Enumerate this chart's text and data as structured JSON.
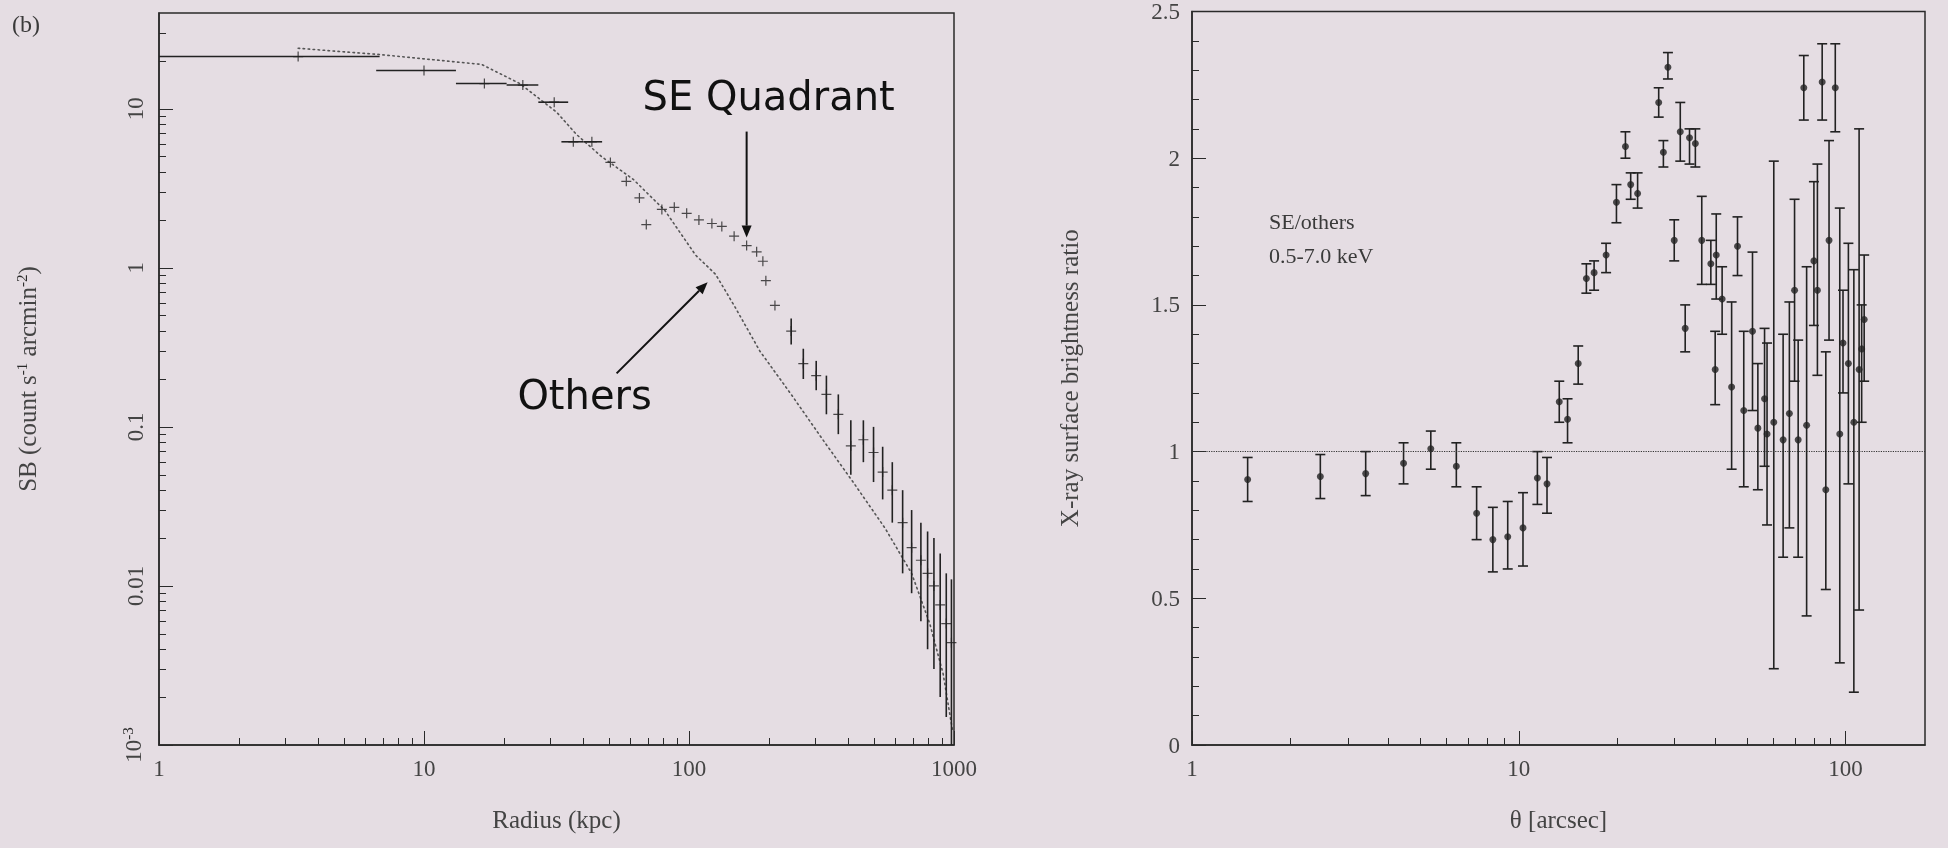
{
  "chart_data": [
    {
      "type": "scatter",
      "annotations": [
        "(b)"
      ],
      "xlabel": "Radius (kpc)",
      "ylabel": "SB (count s$^{-1}$ arcmin$^{-2}$)",
      "log": "xy",
      "xlim": [
        1,
        1000
      ],
      "xticks": [
        1,
        10,
        100,
        1000
      ],
      "ylim": [
        0.001,
        40
      ],
      "yticks": [
        {
          "value": 0.001,
          "label": "10$^{-3}$"
        },
        0.01,
        0.1,
        1,
        10
      ],
      "legend": false,
      "series": [
        {
          "name": "SE Quadrant",
          "type": "scatter",
          "color": "#222222",
          "marker": "cross",
          "x": [
            3.35,
            10,
            16.9,
            23.6,
            31,
            36.6,
            43,
            50.5,
            58,
            65,
            69,
            79,
            88,
            98,
            109,
            122,
            133,
            148,
            165,
            180,
            190,
            195,
            211,
            243,
            270,
            302,
            330,
            366,
            408,
            455,
            497,
            538,
            585,
            640,
            692,
            750,
            795,
            840,
            887,
            935,
            978
          ],
          "values": [
            21.3,
            17.4,
            14.4,
            14.1,
            11,
            6.2,
            6.2,
            4.6,
            3.5,
            2.75,
            1.87,
            2.33,
            2.4,
            2.2,
            2.0,
            1.9,
            1.82,
            1.58,
            1.38,
            1.26,
            1.1,
            0.83,
            0.58,
            0.4,
            0.25,
            0.21,
            0.16,
            0.12,
            0.076,
            0.083,
            0.069,
            0.052,
            0.04,
            0.025,
            0.0174,
            0.0145,
            0.012,
            0.01,
            0.0076,
            0.0058,
            0.0044
          ],
          "xerrors": [
            [
              1,
              6.8
            ],
            [
              6.6,
              13.2
            ],
            [
              13.2,
              20.5
            ],
            [
              20.5,
              27
            ],
            [
              27,
              35
            ],
            [
              33,
              40
            ],
            [
              40,
              47
            ],
            null,
            null,
            null,
            null,
            null,
            null,
            null,
            null,
            null,
            null,
            null,
            null,
            null,
            null,
            null,
            null,
            null,
            null,
            null,
            null,
            null,
            null,
            null,
            null,
            null,
            null,
            null,
            null,
            null,
            null,
            null,
            null,
            null,
            null
          ],
          "errors": [
            null,
            null,
            null,
            null,
            null,
            null,
            null,
            null,
            null,
            null,
            null,
            null,
            null,
            null,
            null,
            null,
            null,
            null,
            null,
            null,
            null,
            null,
            null,
            [
              0.33,
              0.48
            ],
            [
              0.2,
              0.31
            ],
            [
              0.17,
              0.26
            ],
            [
              0.12,
              0.21
            ],
            [
              0.09,
              0.16
            ],
            [
              0.05,
              0.11
            ],
            [
              0.06,
              0.11
            ],
            [
              0.045,
              0.1
            ],
            [
              0.035,
              0.075
            ],
            [
              0.025,
              0.06
            ],
            [
              0.012,
              0.04
            ],
            [
              0.009,
              0.03
            ],
            [
              0.006,
              0.025
            ],
            [
              0.004,
              0.022
            ],
            [
              0.003,
              0.02
            ],
            [
              0.002,
              0.016
            ],
            [
              0.0015,
              0.012
            ],
            [
              0.001,
              0.011
            ]
          ]
        },
        {
          "name": "Others",
          "type": "line",
          "color": "#555555",
          "line_style": "dotted",
          "marker": "none",
          "x": [
            3.35,
            6.85,
            16.5,
            23,
            31.7,
            37.6,
            46.8,
            61.6,
            81,
            106,
            126,
            148,
            185,
            243,
            320,
            420,
            550,
            692,
            810,
            910,
            990
          ],
          "values": [
            24,
            21.9,
            19,
            14.4,
            9.5,
            6.9,
            5.0,
            3.6,
            2.3,
            1.2,
            0.91,
            0.58,
            0.3,
            0.16,
            0.083,
            0.044,
            0.023,
            0.012,
            0.0058,
            0.0028,
            0.0012
          ]
        }
      ]
    },
    {
      "type": "scatter",
      "xlabel": "θ [arcsec]",
      "ylabel": "X-ray surface brightness ratio",
      "log": "x",
      "xlim": [
        1,
        175
      ],
      "xticks": [
        1,
        10,
        100
      ],
      "ylim": [
        0,
        2.5
      ],
      "yticks": [
        0,
        0.5,
        1,
        1.5,
        2,
        2.5
      ],
      "marker": "circle",
      "color": "#222222",
      "annotations": [
        "SE/others",
        "0.5-7.0 keV"
      ],
      "ref_lines": [
        {
          "axis": "y",
          "value": 1,
          "line_style": "dotted",
          "color": "#333333"
        }
      ],
      "x": [
        1.48,
        2.47,
        3.4,
        4.44,
        5.38,
        6.44,
        7.43,
        8.33,
        9.25,
        10.3,
        11.4,
        12.2,
        13.3,
        14.1,
        15.2,
        16.1,
        17,
        18.5,
        19.9,
        21.2,
        22,
        23.1,
        26.8,
        28.6,
        27.7,
        29.9,
        31.2,
        33.3,
        32.3,
        34.7,
        36.3,
        38.7,
        40.2,
        41.9,
        39.9,
        44.8,
        46.7,
        48.8,
        51.9,
        53.9,
        56.5,
        57.5,
        60.3,
        64.4,
        67.3,
        69.8,
        71.6,
        76,
        74.5,
        80,
        84.8,
        82,
        89,
        87,
        93,
        96,
        98.2,
        102,
        106,
        110,
        112,
        114
      ],
      "values": [
        0.905,
        0.915,
        0.925,
        0.96,
        1.01,
        0.95,
        0.79,
        0.7,
        0.71,
        0.74,
        0.91,
        0.89,
        1.17,
        1.11,
        1.3,
        1.59,
        1.61,
        1.67,
        1.85,
        2.04,
        1.91,
        1.88,
        2.19,
        2.31,
        2.02,
        1.72,
        2.09,
        2.07,
        1.42,
        2.05,
        1.72,
        1.64,
        1.67,
        1.52,
        1.28,
        1.22,
        1.7,
        1.14,
        1.41,
        1.08,
        1.18,
        1.06,
        1.1,
        1.04,
        1.13,
        1.55,
        1.04,
        1.09,
        2.24,
        1.65,
        2.26,
        1.55,
        1.72,
        0.87,
        2.24,
        1.06,
        1.37,
        1.3,
        1.1,
        1.28,
        1.35,
        1.45
      ],
      "errors": [
        [
          0.83,
          0.98
        ],
        [
          0.84,
          0.99
        ],
        [
          0.85,
          1.0
        ],
        [
          0.89,
          1.03
        ],
        [
          0.94,
          1.07
        ],
        [
          0.88,
          1.03
        ],
        [
          0.7,
          0.88
        ],
        [
          0.59,
          0.81
        ],
        [
          0.6,
          0.83
        ],
        [
          0.61,
          0.86
        ],
        [
          0.82,
          1.0
        ],
        [
          0.79,
          0.98
        ],
        [
          1.1,
          1.24
        ],
        [
          1.03,
          1.18
        ],
        [
          1.23,
          1.36
        ],
        [
          1.54,
          1.64
        ],
        [
          1.55,
          1.65
        ],
        [
          1.61,
          1.71
        ],
        [
          1.78,
          1.91
        ],
        [
          2.0,
          2.09
        ],
        [
          1.86,
          1.95
        ],
        [
          1.83,
          1.95
        ],
        [
          2.14,
          2.24
        ],
        [
          2.27,
          2.36
        ],
        [
          1.97,
          2.06
        ],
        [
          1.65,
          1.79
        ],
        [
          1.99,
          2.19
        ],
        [
          1.98,
          2.1
        ],
        [
          1.34,
          1.5
        ],
        [
          1.97,
          2.1
        ],
        [
          1.57,
          1.87
        ],
        [
          1.57,
          1.72
        ],
        [
          1.52,
          1.81
        ],
        [
          1.4,
          1.63
        ],
        [
          1.16,
          1.41
        ],
        [
          0.94,
          1.51
        ],
        [
          1.6,
          1.8
        ],
        [
          0.88,
          1.41
        ],
        [
          1.14,
          1.68
        ],
        [
          0.87,
          1.3
        ],
        [
          0.95,
          1.42
        ],
        [
          0.75,
          1.37
        ],
        [
          0.26,
          1.99
        ],
        [
          0.64,
          1.4
        ],
        [
          0.74,
          1.51
        ],
        [
          1.24,
          1.86
        ],
        [
          0.64,
          1.38
        ],
        [
          0.44,
          1.63
        ],
        [
          2.13,
          2.35
        ],
        [
          1.43,
          1.92
        ],
        [
          2.13,
          2.39
        ],
        [
          1.26,
          1.98
        ],
        [
          1.38,
          2.06
        ],
        [
          0.53,
          1.34
        ],
        [
          2.09,
          2.39
        ],
        [
          0.28,
          1.83
        ],
        [
          1.2,
          1.55
        ],
        [
          0.89,
          1.71
        ],
        [
          0.18,
          1.62
        ],
        [
          0.46,
          2.1
        ],
        [
          1.1,
          1.5
        ],
        [
          1.24,
          1.67
        ]
      ]
    }
  ]
}
